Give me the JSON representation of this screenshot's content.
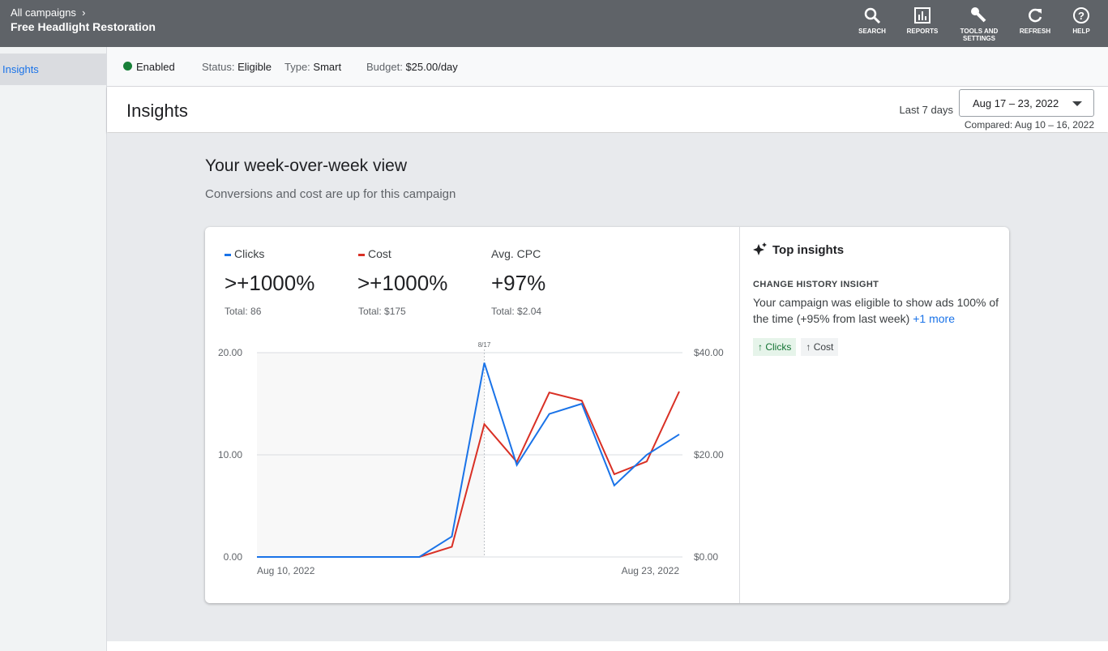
{
  "header": {
    "breadcrumb": "All campaigns",
    "campaign": "Free Headlight Restoration",
    "tools": [
      "SEARCH",
      "REPORTS",
      "TOOLS AND SETTINGS",
      "REFRESH",
      "HELP"
    ]
  },
  "sidebar": {
    "items": [
      "Insights"
    ]
  },
  "status_bar": {
    "enabled": "Enabled",
    "status_label": "Status:",
    "status": "Eligible",
    "type_label": "Type:",
    "type": "Smart",
    "budget_label": "Budget:",
    "budget": "$25.00/day"
  },
  "page": {
    "title": "Insights",
    "range_label": "Last 7 days",
    "date_range": "Aug 17 – 23, 2022",
    "compared": "Compared: Aug 10 – 16, 2022"
  },
  "summary": {
    "title": "Your week-over-week view",
    "subtitle": "Conversions and cost are up for this campaign"
  },
  "metrics": [
    {
      "change": ">+1000%",
      "total": "Total: 86"
    },
    {
      "change": ">+1000%",
      "total": "Total: $175"
    },
    {
      "name": "Avg. CPC",
      "change": "+97%",
      "total": "Total: $2.04"
    }
  ],
  "chart_data": {
    "type": "line",
    "categories": [
      "Aug 10, 2022",
      null,
      null,
      null,
      null,
      null,
      null,
      null,
      null,
      null,
      null,
      null,
      null,
      "Aug 23, 2022"
    ],
    "series": [
      {
        "name": "Clicks",
        "color": "#1a73e8",
        "values": [
          0,
          0,
          0,
          0,
          0,
          0,
          2,
          19,
          9,
          14,
          15,
          7,
          10,
          12
        ]
      },
      {
        "name": "Cost",
        "color": "#d93025",
        "axis": "y2",
        "values": [
          0,
          0,
          0,
          0,
          0,
          0,
          2,
          26,
          18.6,
          32.2,
          30.6,
          16.2,
          18.7,
          32.4
        ]
      }
    ],
    "ylim": [
      0,
      20
    ],
    "yticks": [
      {
        "value": 0,
        "label": "0.00"
      },
      {
        "value": 10,
        "label": "10.00"
      },
      {
        "value": 20,
        "label": "20.00"
      }
    ],
    "y2lim": [
      0,
      40
    ],
    "y2ticks": [
      {
        "value": 0,
        "label": "$0.00"
      },
      {
        "value": 20,
        "label": "$20.00"
      },
      {
        "value": 40,
        "label": "$40.00"
      }
    ],
    "grid": true,
    "annotation": {
      "index": 7,
      "label": "8/17"
    }
  },
  "insights": {
    "title": "Top insights",
    "label": "CHANGE HISTORY INSIGHT",
    "text": "Your campaign was eligible to show ads 100% of the time (+95% from last week)",
    "link": "+1 more",
    "chips": [
      "Clicks",
      "Cost"
    ]
  }
}
